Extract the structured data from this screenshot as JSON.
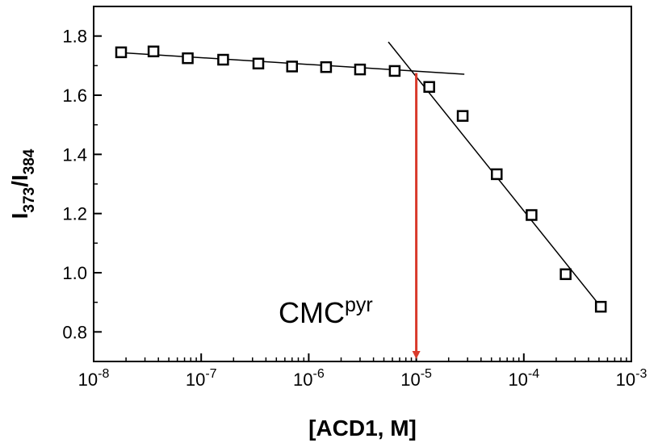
{
  "chart_data": {
    "type": "scatter",
    "title": "",
    "xscale": "log",
    "xlim": [
      1e-08,
      0.001
    ],
    "ylim": [
      0.7,
      1.9
    ],
    "grid": false,
    "xlabel": "[ACD1, M]",
    "ylabel": {
      "base": "I",
      "num_sub": "373",
      "sep": "/",
      "den_base": "I",
      "den_sub": "384"
    },
    "x_ticks": [
      {
        "value": 1e-08,
        "base": "10",
        "exp": "-8"
      },
      {
        "value": 1e-07,
        "base": "10",
        "exp": "-7"
      },
      {
        "value": 1e-06,
        "base": "10",
        "exp": "-6"
      },
      {
        "value": 1e-05,
        "base": "10",
        "exp": "-5"
      },
      {
        "value": 0.0001,
        "base": "10",
        "exp": "-4"
      },
      {
        "value": 0.001,
        "base": "10",
        "exp": "-3"
      }
    ],
    "y_ticks": [
      {
        "value": 0.8,
        "label": "0.8"
      },
      {
        "value": 1.0,
        "label": "1.0"
      },
      {
        "value": 1.2,
        "label": "1.2"
      },
      {
        "value": 1.4,
        "label": "1.4"
      },
      {
        "value": 1.6,
        "label": "1.6"
      },
      {
        "value": 1.8,
        "label": "1.8"
      }
    ],
    "points": [
      {
        "x": 1.8e-08,
        "y": 1.745
      },
      {
        "x": 3.6e-08,
        "y": 1.748
      },
      {
        "x": 7.5e-08,
        "y": 1.725
      },
      {
        "x": 1.6e-07,
        "y": 1.72
      },
      {
        "x": 3.4e-07,
        "y": 1.707
      },
      {
        "x": 7e-07,
        "y": 1.697
      },
      {
        "x": 1.45e-06,
        "y": 1.695
      },
      {
        "x": 3e-06,
        "y": 1.687
      },
      {
        "x": 6.3e-06,
        "y": 1.682
      },
      {
        "x": 1.32e-05,
        "y": 1.628
      },
      {
        "x": 2.7e-05,
        "y": 1.53
      },
      {
        "x": 5.6e-05,
        "y": 1.333
      },
      {
        "x": 0.000118,
        "y": 1.195
      },
      {
        "x": 0.000245,
        "y": 0.995
      },
      {
        "x": 0.00052,
        "y": 0.885
      }
    ],
    "fit_lines": [
      {
        "x1": 1.6e-08,
        "y1": 1.745,
        "x2": 2.8e-05,
        "y2": 1.671
      },
      {
        "x1": 5.5e-06,
        "y1": 1.78,
        "x2": 0.00056,
        "y2": 0.87
      }
    ],
    "cmc_marker": {
      "x": 1e-05,
      "y_from": 1.675,
      "y_to": 0.7,
      "color": "#d93a2b",
      "label_base": "CMC",
      "label_sup": "pyr"
    }
  }
}
